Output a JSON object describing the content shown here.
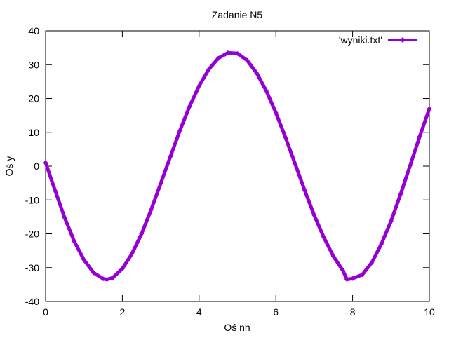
{
  "chart_data": {
    "type": "line",
    "title": "Zadanie N5",
    "xlabel": "Oś nh",
    "ylabel": "Oś y",
    "xlim": [
      0,
      10
    ],
    "ylim": [
      -40,
      40
    ],
    "x_ticks": [
      0,
      2,
      4,
      6,
      8,
      10
    ],
    "y_ticks": [
      -40,
      -30,
      -20,
      -10,
      0,
      10,
      20,
      30,
      40
    ],
    "grid": false,
    "legend_position": "top-right",
    "series": [
      {
        "name": "'wyniki.txt'",
        "color": "#9400d3",
        "marker": "diamond",
        "x": [
          0,
          0.25,
          0.5,
          0.75,
          1,
          1.25,
          1.5,
          1.6,
          1.75,
          2,
          2.25,
          2.5,
          2.75,
          3,
          3.25,
          3.5,
          3.75,
          4,
          4.25,
          4.5,
          4.75,
          5,
          5.25,
          5.5,
          5.75,
          6,
          6.25,
          6.5,
          6.75,
          7,
          7.25,
          7.5,
          7.75,
          7.85,
          8,
          8.25,
          8.5,
          8.75,
          9,
          9.25,
          9.5,
          9.75,
          10
        ],
        "y": [
          1,
          -7.3,
          -15.3,
          -22.3,
          -27.7,
          -31.5,
          -33.3,
          -33.5,
          -33.0,
          -30.3,
          -25.9,
          -20.0,
          -12.9,
          -5.1,
          2.8,
          10.5,
          17.6,
          23.7,
          28.6,
          31.9,
          33.5,
          33.3,
          31.3,
          27.5,
          22.3,
          15.8,
          8.5,
          0.7,
          -7.1,
          -14.5,
          -21.1,
          -26.7,
          -30.9,
          -33.5,
          -33.2,
          -32.1,
          -28.5,
          -23.0,
          -16.3,
          -8.3,
          0.2,
          8.8,
          17
        ]
      }
    ]
  }
}
